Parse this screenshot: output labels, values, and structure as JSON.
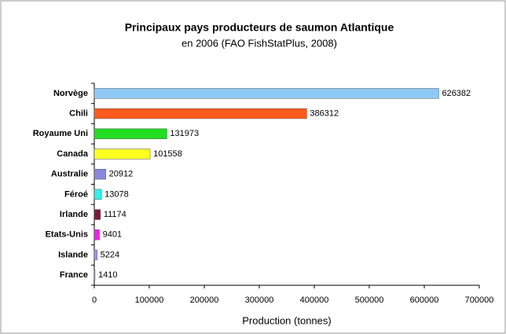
{
  "chart_data": {
    "type": "bar",
    "orientation": "horizontal",
    "title": "Principaux pays producteurs de saumon Atlantique",
    "subtitle": "en 2006 (FAO FishStatPlus, 2008)",
    "categories": [
      "Norvège",
      "Chili",
      "Royaume Uni",
      "Canada",
      "Australie",
      "Féroé",
      "Irlande",
      "Etats-Unis",
      "Islande",
      "France"
    ],
    "values": [
      626382,
      386312,
      131973,
      101558,
      20912,
      13078,
      11174,
      9401,
      5224,
      1410
    ],
    "colors": [
      "#8ec8f6",
      "#ff5a1e",
      "#22dd22",
      "#ffff22",
      "#8888dd",
      "#33eeee",
      "#7a1a3a",
      "#ee22ee",
      "#9999ff",
      "#ccccff"
    ],
    "xlabel": "Production (tonnes)",
    "xlim": [
      0,
      700000
    ],
    "xticks": [
      0,
      100000,
      200000,
      300000,
      400000,
      500000,
      600000,
      700000
    ],
    "grid": false
  }
}
